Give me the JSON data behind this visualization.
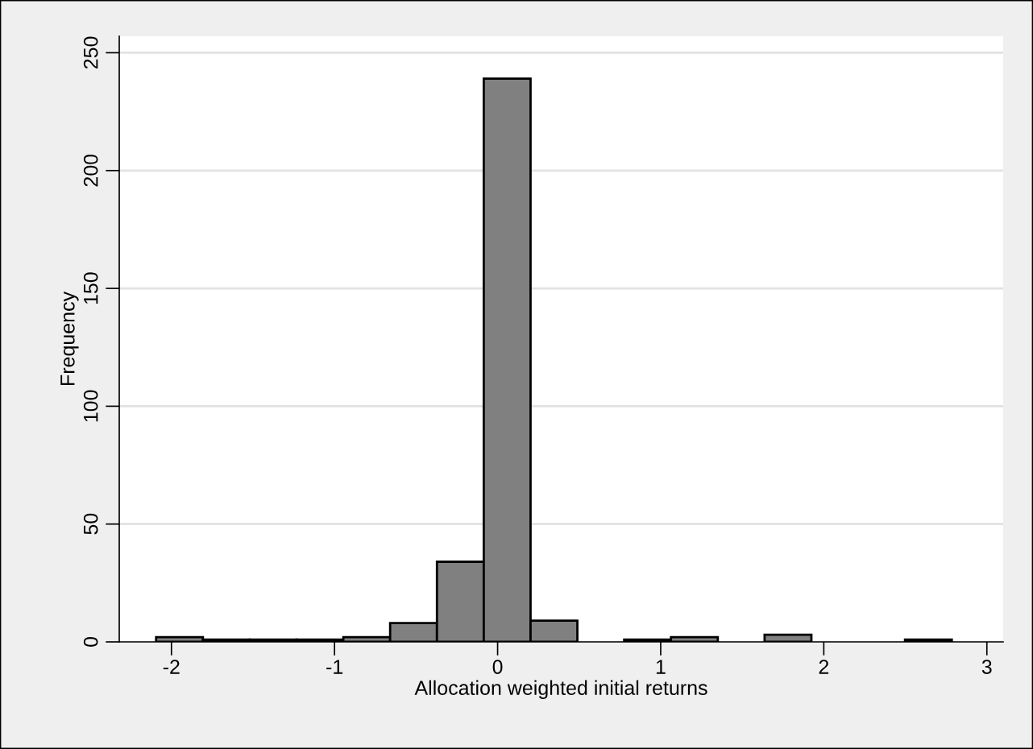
{
  "chart_data": {
    "type": "histogram",
    "xlabel": "Allocation weighted initial returns",
    "ylabel": "Frequency",
    "bins": [
      -2.094,
      -1.807,
      -1.52,
      -1.233,
      -0.946,
      -0.659,
      -0.372,
      -0.085,
      0.202,
      0.489,
      0.776,
      1.063,
      1.35,
      1.637,
      1.924,
      2.211,
      2.498,
      2.785
    ],
    "values": [
      2,
      1,
      1,
      1,
      2,
      8,
      34,
      239,
      9,
      0,
      1,
      2,
      0,
      3,
      0,
      0,
      1
    ],
    "color": "#808080",
    "xlim": [
      -2.32,
      3.1
    ],
    "xticks": [
      {
        "value": -2,
        "label": "-2"
      },
      {
        "value": -1,
        "label": "-1"
      },
      0,
      1,
      2,
      3
    ],
    "ylim": [
      0,
      257
    ],
    "yticks": [
      0,
      50,
      100,
      150,
      200,
      250
    ],
    "grid": "y",
    "legend": false
  }
}
